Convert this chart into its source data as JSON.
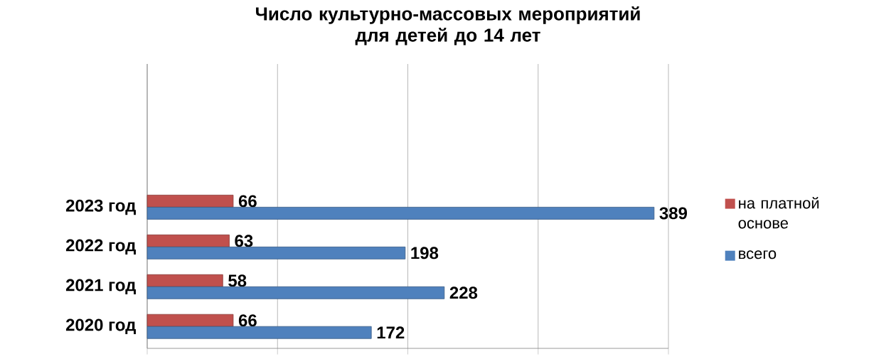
{
  "chart_data": {
    "type": "bar",
    "orientation": "horizontal",
    "title": "Число культурно-массовых мероприятий\nдля детей до 14 лет",
    "categories": [
      "2023 год",
      "2022 год",
      "2021 год",
      "2020 год"
    ],
    "series": [
      {
        "name": "на платной основе",
        "color": "#c0504d",
        "values": [
          66,
          63,
          58,
          66
        ]
      },
      {
        "name": "всего",
        "color": "#4f81bd",
        "values": [
          389,
          198,
          228,
          172
        ]
      }
    ],
    "xlim": [
      0,
      400
    ],
    "xticks": [
      {
        "value": 0,
        "label": null
      },
      {
        "value": 100,
        "label": null
      },
      {
        "value": 200,
        "label": null
      },
      {
        "value": 300,
        "label": null
      },
      {
        "value": 400,
        "label": null
      }
    ],
    "tick_labels": "y",
    "grid": "x",
    "legend": "right",
    "data_labels": true
  }
}
